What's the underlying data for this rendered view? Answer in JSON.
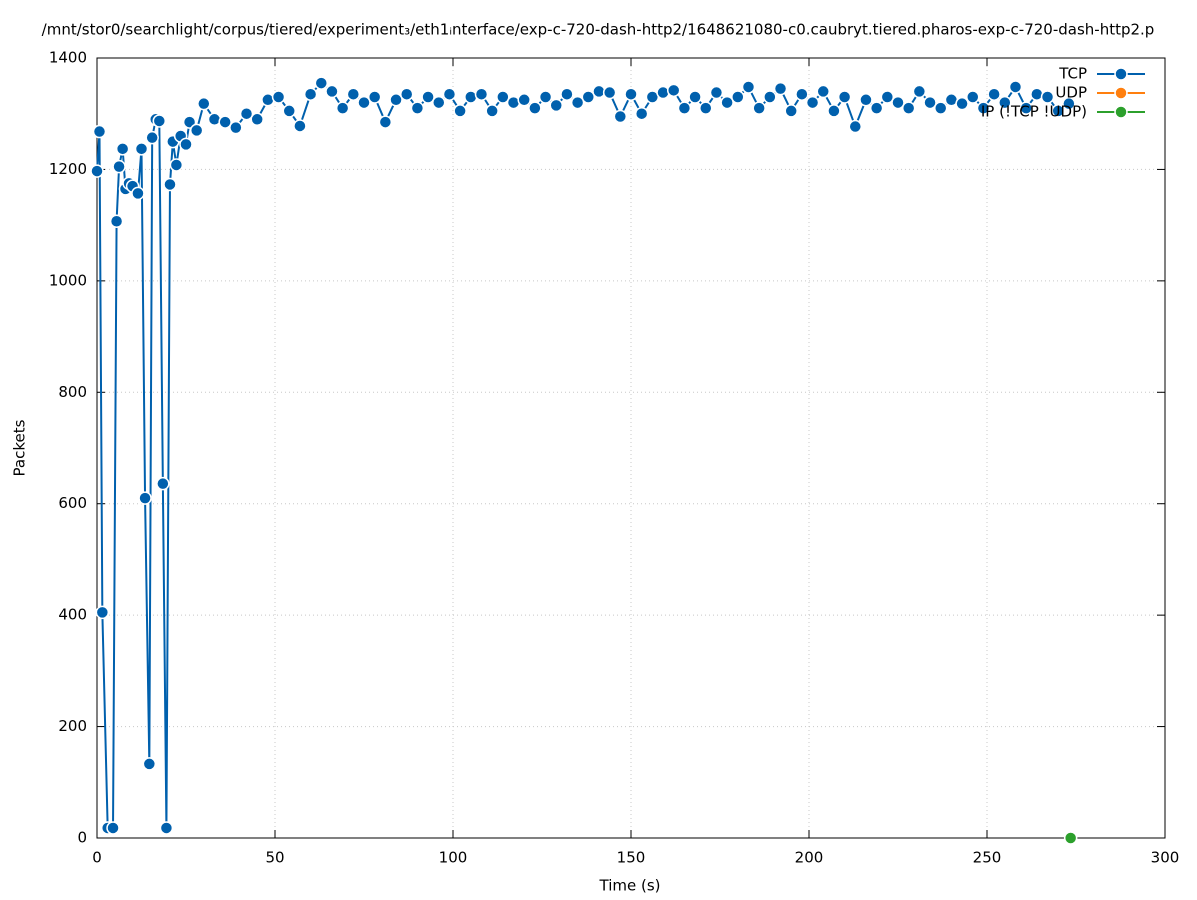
{
  "chart_data": {
    "type": "line",
    "title": "/mnt/stor0/searchlight/corpus/tiered/experiment₃/eth1ᵢnterface/exp-c-720-dash-http2/1648621080-c0.caubryt.tiered.pharos-exp-c-720-dash-http2.p",
    "x_label": "Time (s)",
    "y_label": "Packets",
    "xlim": [
      0,
      300
    ],
    "xticks": [
      0,
      50,
      100,
      150,
      200,
      250,
      300
    ],
    "ylim": [
      0,
      1400
    ],
    "yticks": [
      0,
      200,
      400,
      600,
      800,
      1000,
      1200,
      1400
    ],
    "grid": true,
    "legend": "top-right",
    "series": [
      {
        "name": "TCP",
        "color": "#0060ad",
        "x": [
          0,
          0.7,
          1.5,
          3,
          4.5,
          5.5,
          6.2,
          7.2,
          8,
          9,
          10,
          11.5,
          12.5,
          13.5,
          14.7,
          15.5,
          16.5,
          17.5,
          18.5,
          19.5,
          20.5,
          21.3,
          22.3,
          23.5,
          25,
          26,
          28,
          30,
          33,
          36,
          39,
          42,
          45,
          48,
          51,
          54,
          57,
          60,
          63,
          66,
          69,
          72,
          75,
          78,
          81,
          84,
          87,
          90,
          93,
          96,
          99,
          102,
          105,
          108,
          111,
          114,
          117,
          120,
          123,
          126,
          129,
          132,
          135,
          138,
          141,
          144,
          147,
          150,
          153,
          156,
          159,
          162,
          165,
          168,
          171,
          174,
          177,
          180,
          183,
          186,
          189,
          192,
          195,
          198,
          201,
          204,
          207,
          210,
          213,
          216,
          219,
          222,
          225,
          228,
          231,
          234,
          237,
          240,
          243,
          246,
          249,
          252,
          255,
          258,
          261,
          264,
          267,
          270,
          273
        ],
        "values": [
          1197,
          1268,
          405,
          18,
          18,
          1107,
          1205,
          1237,
          1165,
          1175,
          1170,
          1157,
          1237,
          610,
          133,
          1257,
          1290,
          1287,
          636,
          18,
          1173,
          1250,
          1208,
          1260,
          1245,
          1285,
          1270,
          1318,
          1290,
          1285,
          1275,
          1300,
          1290,
          1325,
          1330,
          1305,
          1278,
          1335,
          1355,
          1340,
          1310,
          1335,
          1320,
          1330,
          1285,
          1325,
          1335,
          1310,
          1330,
          1320,
          1335,
          1305,
          1330,
          1335,
          1305,
          1330,
          1320,
          1325,
          1310,
          1330,
          1315,
          1335,
          1320,
          1330,
          1340,
          1338,
          1295,
          1335,
          1300,
          1330,
          1338,
          1342,
          1310,
          1330,
          1310,
          1338,
          1320,
          1330,
          1348,
          1310,
          1330,
          1345,
          1305,
          1335,
          1320,
          1340,
          1305,
          1330,
          1277,
          1325,
          1310,
          1330,
          1320,
          1310,
          1340,
          1320,
          1310,
          1325,
          1318,
          1330,
          1310,
          1335,
          1320,
          1348,
          1310,
          1335,
          1330,
          1305,
          1318
        ]
      },
      {
        "name": "UDP",
        "color": "#ff7f0e",
        "x": [],
        "values": []
      },
      {
        "name": "IP (!TCP  !UDP)",
        "color": "#2ca02c",
        "x": [
          273.5
        ],
        "values": [
          0
        ]
      }
    ]
  }
}
